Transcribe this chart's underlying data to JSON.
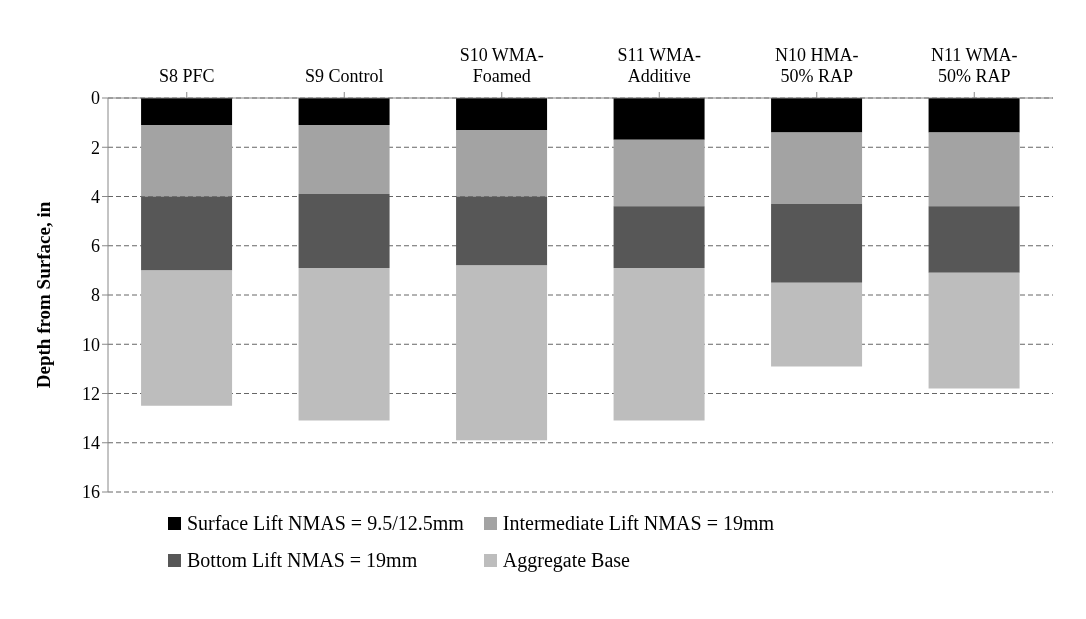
{
  "chart_data": {
    "type": "bar",
    "stacked": true,
    "ylabel": "Depth from Surface, in",
    "categories": [
      "S8 PFC",
      "S9 Control",
      "S10 WMA-Foamed",
      "S11 WMA-Additive",
      "N10 HMA-50% RAP",
      "N11 WMA-50% RAP"
    ],
    "series": [
      {
        "name": "Surface Lift NMAS = 9.5/12.5mm",
        "color": "#000000",
        "values": [
          1.1,
          1.1,
          1.3,
          1.7,
          1.4,
          1.4
        ]
      },
      {
        "name": "Intermediate Lift NMAS = 19mm",
        "color": "#a3a3a3",
        "values": [
          2.9,
          2.8,
          2.7,
          2.7,
          2.9,
          3.0
        ]
      },
      {
        "name": "Bottom Lift NMAS = 19mm",
        "color": "#575757",
        "values": [
          3.0,
          3.0,
          2.8,
          2.5,
          3.2,
          2.7
        ]
      },
      {
        "name": "Aggregate Base",
        "color": "#bdbdbd",
        "values": [
          5.5,
          6.2,
          7.1,
          6.2,
          3.4,
          4.7
        ]
      }
    ],
    "ylim": [
      16,
      0
    ],
    "yticks": [
      0,
      2,
      4,
      6,
      8,
      10,
      12,
      14,
      16
    ],
    "grid": "y",
    "legend": "bottom"
  }
}
